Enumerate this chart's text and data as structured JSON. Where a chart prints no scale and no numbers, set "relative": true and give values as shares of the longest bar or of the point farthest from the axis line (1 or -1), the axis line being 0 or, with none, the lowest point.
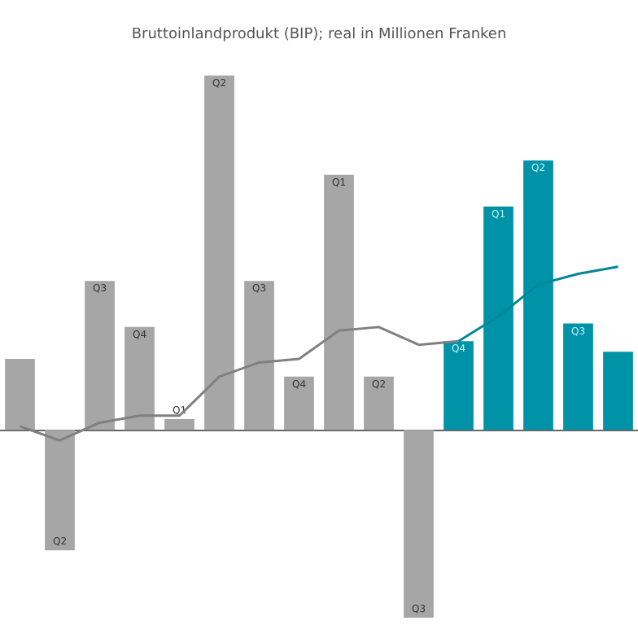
{
  "chart_data": {
    "type": "bar",
    "title": "Bruttoinlandprodukt (BIP); real in Millionen Franken",
    "relative": true,
    "categories": [
      null,
      "Q2",
      "Q3",
      "Q4",
      "Q1",
      "Q2",
      "Q3",
      "Q4",
      "Q1",
      "Q2",
      "Q3",
      "Q4",
      "Q1",
      "Q2",
      "Q3",
      null
    ],
    "series": [
      {
        "color": "#a6a6a6",
        "values": [
          0.2,
          -0.34,
          0.42,
          0.29,
          0.03,
          1,
          0.42,
          0.15,
          0.72,
          0.15,
          -0.53,
          null,
          null,
          null,
          null,
          null
        ]
      },
      {
        "color": "#0093a8",
        "values": [
          null,
          null,
          null,
          null,
          null,
          null,
          null,
          null,
          null,
          null,
          null,
          0.25,
          0.63,
          0.76,
          0.3,
          0.22
        ]
      },
      {
        "type": "line",
        "color": "#808080",
        "values": [
          0.01,
          -0.03,
          0.02,
          0.04,
          0.04,
          0.15,
          0.19,
          0.2,
          0.28,
          0.29,
          0.24,
          0.25,
          null,
          null,
          null,
          null
        ]
      },
      {
        "type": "line",
        "color": "#00879b",
        "values": [
          null,
          null,
          null,
          null,
          null,
          null,
          null,
          null,
          null,
          null,
          null,
          0.25,
          0.32,
          0.41,
          0.44,
          0.46
        ]
      }
    ],
    "marker": "none",
    "grid": false
  }
}
